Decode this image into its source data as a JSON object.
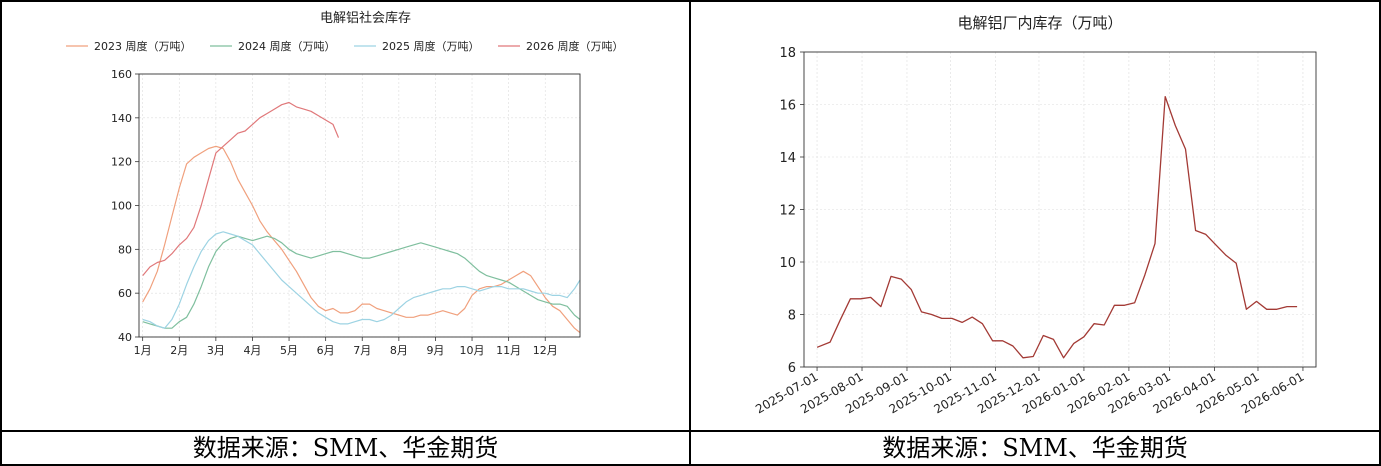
{
  "footer": {
    "left_source": "数据来源：SMM、华金期货",
    "right_source": "数据来源：SMM、华金期货"
  },
  "chart_data": [
    {
      "type": "line",
      "title": "电解铝社会库存",
      "xlabel": "",
      "ylabel": "",
      "x_ticks": [
        "1月",
        "2月",
        "3月",
        "4月",
        "5月",
        "6月",
        "7月",
        "8月",
        "9月",
        "10月",
        "11月",
        "12月"
      ],
      "xlim": [
        0.9,
        12.95
      ],
      "ylim": [
        40,
        160
      ],
      "y_ticks": [
        40,
        60,
        80,
        100,
        120,
        140,
        160
      ],
      "grid": true,
      "legend_position": "top",
      "series": [
        {
          "name": "2023 周度（万吨）",
          "color": "#f0a07d",
          "x": [
            1.0,
            1.2,
            1.4,
            1.6,
            1.8,
            2.0,
            2.2,
            2.4,
            2.6,
            2.8,
            3.0,
            3.2,
            3.4,
            3.6,
            3.8,
            4.0,
            4.2,
            4.4,
            4.6,
            4.8,
            5.0,
            5.2,
            5.4,
            5.6,
            5.8,
            6.0,
            6.2,
            6.4,
            6.6,
            6.8,
            7.0,
            7.2,
            7.4,
            7.6,
            7.8,
            8.0,
            8.2,
            8.4,
            8.6,
            8.8,
            9.0,
            9.2,
            9.4,
            9.6,
            9.8,
            10.0,
            10.2,
            10.4,
            10.6,
            10.8,
            11.0,
            11.2,
            11.4,
            11.6,
            11.8,
            12.0,
            12.2,
            12.4,
            12.6,
            12.8,
            12.95
          ],
          "y": [
            56,
            62,
            70,
            82,
            95,
            108,
            119,
            122,
            124,
            126,
            127,
            126,
            120,
            112,
            106,
            100,
            93,
            88,
            84,
            80,
            75,
            70,
            64,
            58,
            54,
            52,
            53,
            51,
            51,
            52,
            55,
            55,
            53,
            52,
            51,
            50,
            49,
            49,
            50,
            50,
            51,
            52,
            51,
            50,
            53,
            59,
            62,
            63,
            63,
            64,
            66,
            68,
            70,
            68,
            63,
            58,
            54,
            52,
            48,
            44,
            42
          ]
        },
        {
          "name": "2024 周度（万吨）",
          "color": "#7fbf9e",
          "x": [
            1.0,
            1.2,
            1.4,
            1.6,
            1.8,
            2.0,
            2.2,
            2.4,
            2.6,
            2.8,
            3.0,
            3.2,
            3.4,
            3.6,
            3.8,
            4.0,
            4.2,
            4.4,
            4.6,
            4.8,
            5.0,
            5.2,
            5.4,
            5.6,
            5.8,
            6.0,
            6.2,
            6.4,
            6.6,
            6.8,
            7.0,
            7.2,
            7.4,
            7.6,
            7.8,
            8.0,
            8.2,
            8.4,
            8.6,
            8.8,
            9.0,
            9.2,
            9.4,
            9.6,
            9.8,
            10.0,
            10.2,
            10.4,
            10.6,
            10.8,
            11.0,
            11.2,
            11.4,
            11.6,
            11.8,
            12.0,
            12.2,
            12.4,
            12.6,
            12.8,
            12.95
          ],
          "y": [
            47,
            46,
            45,
            44,
            44,
            47,
            49,
            55,
            63,
            72,
            79,
            83,
            85,
            86,
            85,
            84,
            85,
            86,
            85,
            83,
            80,
            78,
            77,
            76,
            77,
            78,
            79,
            79,
            78,
            77,
            76,
            76,
            77,
            78,
            79,
            80,
            81,
            82,
            83,
            82,
            81,
            80,
            79,
            78,
            76,
            73,
            70,
            68,
            67,
            66,
            65,
            63,
            61,
            59,
            57,
            56,
            55,
            55,
            54,
            50,
            48
          ]
        },
        {
          "name": "2025 周度（万吨）",
          "color": "#9dd3e3",
          "x": [
            1.0,
            1.2,
            1.4,
            1.6,
            1.8,
            2.0,
            2.2,
            2.4,
            2.6,
            2.8,
            3.0,
            3.2,
            3.4,
            3.6,
            3.8,
            4.0,
            4.2,
            4.4,
            4.6,
            4.8,
            5.0,
            5.2,
            5.4,
            5.6,
            5.8,
            6.0,
            6.2,
            6.4,
            6.6,
            6.8,
            7.0,
            7.2,
            7.4,
            7.6,
            7.8,
            8.0,
            8.2,
            8.4,
            8.6,
            8.8,
            9.0,
            9.2,
            9.4,
            9.6,
            9.8,
            10.0,
            10.2,
            10.4,
            10.6,
            10.8,
            11.0,
            11.2,
            11.4,
            11.6,
            11.8,
            12.0,
            12.2,
            12.4,
            12.6,
            12.8,
            12.95
          ],
          "y": [
            48,
            47,
            45,
            44,
            48,
            55,
            64,
            72,
            79,
            84,
            87,
            88,
            87,
            86,
            84,
            82,
            78,
            74,
            70,
            66,
            63,
            60,
            57,
            54,
            51,
            49,
            47,
            46,
            46,
            47,
            48,
            48,
            47,
            48,
            50,
            53,
            56,
            58,
            59,
            60,
            61,
            62,
            62,
            63,
            63,
            62,
            61,
            62,
            63,
            63,
            62,
            62,
            62,
            61,
            60,
            60,
            59,
            59,
            58,
            62,
            66
          ]
        },
        {
          "name": "2026 周度（万吨）",
          "color": "#e0787a",
          "x": [
            1.0,
            1.2,
            1.4,
            1.6,
            1.8,
            2.0,
            2.2,
            2.4,
            2.6,
            2.8,
            3.0,
            3.2,
            3.4,
            3.6,
            3.8,
            4.0,
            4.2,
            4.4,
            4.6,
            4.8,
            5.0,
            5.2,
            5.4,
            5.6,
            5.8,
            6.0,
            6.2,
            6.35
          ],
          "y": [
            68,
            72,
            74,
            75,
            78,
            82,
            85,
            90,
            100,
            112,
            124,
            127,
            130,
            133,
            134,
            137,
            140,
            142,
            144,
            146,
            147,
            145,
            144,
            143,
            141,
            139,
            137,
            131
          ]
        }
      ]
    },
    {
      "type": "line",
      "title": "电解铝厂内库存（万吨）",
      "xlabel": "",
      "ylabel": "",
      "x_ticks": [
        "2025-07-01",
        "2025-08-01",
        "2025-09-01",
        "2025-10-01",
        "2025-11-01",
        "2025-12-01",
        "2026-01-01",
        "2026-02-01",
        "2026-03-01",
        "2026-04-01",
        "2026-05-01",
        "2026-06-01"
      ],
      "xlim": [
        "2025-06-22",
        "2026-06-10"
      ],
      "ylim": [
        6,
        18
      ],
      "y_ticks": [
        6,
        8,
        10,
        12,
        14,
        16,
        18
      ],
      "grid": true,
      "series": [
        {
          "color": "#a33a35",
          "x": [
            "2025-07-01",
            "2025-07-10",
            "2025-07-17",
            "2025-07-24",
            "2025-07-31",
            "2025-08-07",
            "2025-08-14",
            "2025-08-21",
            "2025-08-28",
            "2025-09-04",
            "2025-09-11",
            "2025-09-18",
            "2025-09-25",
            "2025-10-02",
            "2025-10-09",
            "2025-10-16",
            "2025-10-23",
            "2025-10-30",
            "2025-11-06",
            "2025-11-13",
            "2025-11-20",
            "2025-11-27",
            "2025-12-04",
            "2025-12-11",
            "2025-12-18",
            "2025-12-25",
            "2026-01-01",
            "2026-01-08",
            "2026-01-15",
            "2026-01-22",
            "2026-01-29",
            "2026-02-05",
            "2026-02-12",
            "2026-02-19",
            "2026-02-26",
            "2026-03-05",
            "2026-03-12",
            "2026-03-19",
            "2026-03-26",
            "2026-04-02",
            "2026-04-09",
            "2026-04-16",
            "2026-04-23",
            "2026-04-30",
            "2026-05-07",
            "2026-05-14",
            "2026-05-21",
            "2026-05-28"
          ],
          "y": [
            6.75,
            6.95,
            7.8,
            8.6,
            8.6,
            8.65,
            8.3,
            9.45,
            9.35,
            8.95,
            8.1,
            8.0,
            7.85,
            7.85,
            7.7,
            7.9,
            7.65,
            7.0,
            7.0,
            6.8,
            6.35,
            6.4,
            7.2,
            7.05,
            6.35,
            6.9,
            7.15,
            7.65,
            7.6,
            8.35,
            8.35,
            8.45,
            9.5,
            10.7,
            16.3,
            15.2,
            14.3,
            11.2,
            11.05,
            10.65,
            10.25,
            9.95,
            8.2,
            8.5,
            8.2,
            8.2,
            8.3,
            8.3
          ]
        }
      ]
    }
  ]
}
